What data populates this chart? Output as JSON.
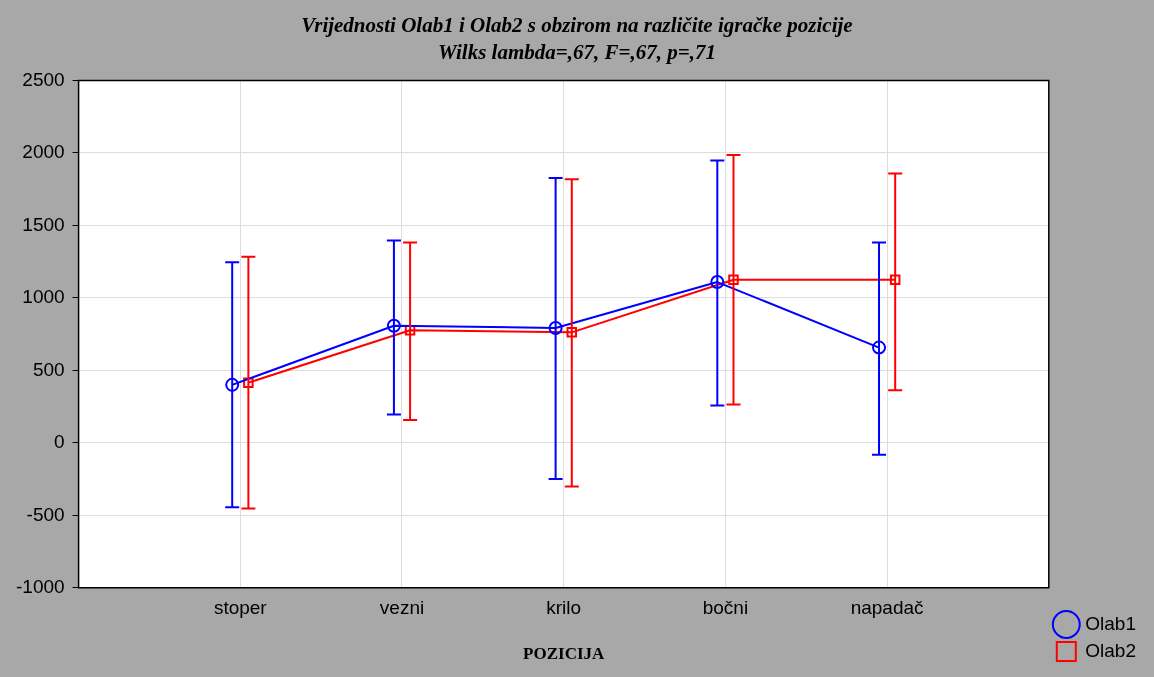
{
  "chart_data": {
    "type": "line",
    "title": "Vrijednosti Olab1 i Olab2 s obzirom na različite igračke pozicije",
    "subtitle": "Wilks lambda=,67, F=,67, p=,71",
    "xlabel": "POZICIJA",
    "categories": [
      "stoper",
      "vezni",
      "krilo",
      "bočni",
      "napadač"
    ],
    "series": [
      {
        "name": "Olab1",
        "color": "#0000ff",
        "marker": "circle",
        "values": [
          400,
          808,
          792,
          1109,
          657
        ],
        "errors": [
          [
            -445,
            1245
          ],
          [
            196,
            1396
          ],
          [
            -249,
            1826
          ],
          [
            257,
            1947
          ],
          [
            -83,
            1381
          ]
        ]
      },
      {
        "name": "Olab2",
        "color": "#ff0000",
        "marker": "square",
        "values": [
          415,
          777,
          762,
          1125,
          1125
        ],
        "errors": [
          [
            -453,
            1283
          ],
          [
            158,
            1381
          ],
          [
            -302,
            1819
          ],
          [
            264,
            1985
          ],
          [
            362,
            1857
          ]
        ]
      }
    ],
    "ylim": [
      -1000,
      2500
    ],
    "yticks": [
      -1000,
      -500,
      0,
      500,
      1000,
      1500,
      2000,
      2500
    ],
    "grid": true,
    "legend": "bottom right",
    "line_style": "solid"
  }
}
